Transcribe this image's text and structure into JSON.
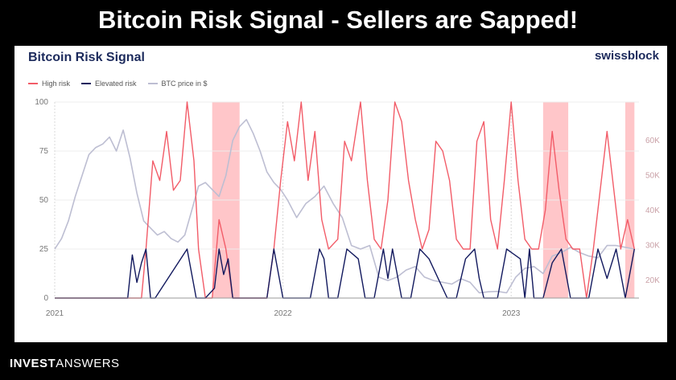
{
  "banner": {
    "title": "Bitcoin Risk Signal - Sellers are Sapped!"
  },
  "card": {
    "title": "Bitcoin Risk Signal",
    "brand": "swissblock"
  },
  "footer": {
    "part1": "INVEST",
    "part2": "ANSWERS"
  },
  "colors": {
    "high_risk": "#f25c68",
    "elevated_risk": "#12195e",
    "btc_price": "#bdbed2",
    "highlight_band": "#ffbcbf",
    "grid": "#ececec",
    "axis_text": "#777777"
  },
  "chart_data": {
    "type": "line",
    "title": "Bitcoin Risk Signal",
    "legend": [
      {
        "name": "High risk",
        "color": "#f25c68"
      },
      {
        "name": "Elevated risk",
        "color": "#12195e"
      },
      {
        "name": "BTC price in $",
        "color": "#bdbed2"
      }
    ],
    "legend_placement": "top-left",
    "x_ticks": [
      {
        "label": "2021",
        "x": 2021.0
      },
      {
        "label": "2022",
        "x": 2022.0
      },
      {
        "label": "2023",
        "x": 2023.0
      }
    ],
    "xlim": [
      2021.0,
      2023.56
    ],
    "y_left": {
      "ticks": [
        0,
        25,
        50,
        75,
        100
      ],
      "ylim": [
        0,
        100
      ]
    },
    "y_right": {
      "ticks": [
        20000,
        30000,
        40000,
        50000,
        60000
      ],
      "tick_labels": [
        "20K",
        "30K",
        "40K",
        "50K",
        "60K"
      ],
      "ylim": [
        15000,
        71000
      ]
    },
    "grid": "horizontal",
    "highlight_bands": [
      {
        "x_start": 2021.69,
        "x_end": 2021.81
      },
      {
        "x_start": 2023.14,
        "x_end": 2023.25
      },
      {
        "x_start": 2023.5,
        "x_end": 2023.54
      }
    ],
    "series": [
      {
        "name": "BTC price in $",
        "axis": "right",
        "x": [
          2021.0,
          2021.03,
          2021.06,
          2021.09,
          2021.12,
          2021.15,
          2021.18,
          2021.21,
          2021.24,
          2021.27,
          2021.3,
          2021.33,
          2021.36,
          2021.39,
          2021.42,
          2021.45,
          2021.48,
          2021.51,
          2021.54,
          2021.57,
          2021.6,
          2021.63,
          2021.66,
          2021.69,
          2021.72,
          2021.75,
          2021.78,
          2021.81,
          2021.84,
          2021.87,
          2021.9,
          2021.93,
          2021.96,
          2021.99,
          2022.02,
          2022.06,
          2022.1,
          2022.14,
          2022.18,
          2022.22,
          2022.26,
          2022.3,
          2022.34,
          2022.38,
          2022.42,
          2022.46,
          2022.5,
          2022.54,
          2022.58,
          2022.62,
          2022.66,
          2022.7,
          2022.74,
          2022.78,
          2022.82,
          2022.86,
          2022.9,
          2022.94,
          2022.98,
          2023.02,
          2023.06,
          2023.1,
          2023.14,
          2023.18,
          2023.22,
          2023.26,
          2023.3,
          2023.34,
          2023.38,
          2023.42,
          2023.46,
          2023.5,
          2023.54
        ],
        "values": [
          29000,
          32000,
          37000,
          44000,
          50000,
          56000,
          58000,
          59000,
          61000,
          57000,
          63000,
          55000,
          45000,
          37000,
          35000,
          33000,
          34000,
          32000,
          31000,
          33000,
          40000,
          47000,
          48000,
          46000,
          44000,
          50000,
          60000,
          64000,
          66000,
          62000,
          57000,
          51000,
          48000,
          46000,
          43000,
          38000,
          42000,
          44000,
          47000,
          42000,
          38000,
          30000,
          29000,
          30000,
          21000,
          20000,
          21000,
          23000,
          24000,
          21000,
          20000,
          19500,
          19000,
          20500,
          19500,
          16500,
          16800,
          16900,
          16500,
          21000,
          23500,
          24000,
          22000,
          27000,
          28000,
          29500,
          28000,
          27000,
          26500,
          30000,
          30000,
          29500,
          29000
        ]
      },
      {
        "name": "High risk",
        "axis": "left",
        "note_color": "#f25c68",
        "x": [
          2021.0,
          2021.38,
          2021.4,
          2021.43,
          2021.46,
          2021.49,
          2021.52,
          2021.55,
          2021.58,
          2021.61,
          2021.63,
          2021.66,
          2021.69,
          2021.72,
          2021.75,
          2021.78,
          2021.81,
          2021.87,
          2021.93,
          2021.96,
          2021.99,
          2022.02,
          2022.05,
          2022.08,
          2022.11,
          2022.14,
          2022.17,
          2022.2,
          2022.24,
          2022.27,
          2022.3,
          2022.34,
          2022.37,
          2022.4,
          2022.43,
          2022.46,
          2022.49,
          2022.52,
          2022.55,
          2022.58,
          2022.61,
          2022.64,
          2022.67,
          2022.7,
          2022.73,
          2022.76,
          2022.79,
          2022.82,
          2022.85,
          2022.88,
          2022.91,
          2022.94,
          2022.97,
          2023.0,
          2023.03,
          2023.06,
          2023.09,
          2023.12,
          2023.15,
          2023.18,
          2023.21,
          2023.24,
          2023.27,
          2023.3,
          2023.33,
          2023.36,
          2023.39,
          2023.42,
          2023.45,
          2023.48,
          2023.51,
          2023.54
        ],
        "values": [
          0,
          0,
          25,
          70,
          60,
          85,
          55,
          60,
          100,
          70,
          25,
          0,
          0,
          40,
          25,
          0,
          0,
          0,
          0,
          25,
          60,
          90,
          70,
          100,
          60,
          85,
          40,
          25,
          30,
          80,
          70,
          100,
          60,
          30,
          25,
          50,
          100,
          90,
          60,
          40,
          25,
          35,
          80,
          75,
          60,
          30,
          25,
          25,
          80,
          90,
          40,
          25,
          60,
          100,
          60,
          30,
          25,
          25,
          45,
          85,
          55,
          30,
          25,
          25,
          0,
          25,
          55,
          85,
          55,
          25,
          40,
          25
        ]
      },
      {
        "name": "Elevated risk",
        "axis": "left",
        "x": [
          2021.0,
          2021.32,
          2021.34,
          2021.36,
          2021.38,
          2021.4,
          2021.42,
          2021.44,
          2021.58,
          2021.62,
          2021.66,
          2021.7,
          2021.72,
          2021.74,
          2021.76,
          2021.78,
          2021.93,
          2021.96,
          2022.0,
          2022.04,
          2022.12,
          2022.16,
          2022.18,
          2022.2,
          2022.24,
          2022.28,
          2022.33,
          2022.36,
          2022.4,
          2022.44,
          2022.46,
          2022.48,
          2022.52,
          2022.56,
          2022.6,
          2022.64,
          2022.72,
          2022.76,
          2022.8,
          2022.84,
          2022.86,
          2022.88,
          2022.94,
          2022.98,
          2023.04,
          2023.06,
          2023.08,
          2023.1,
          2023.14,
          2023.18,
          2023.22,
          2023.26,
          2023.3,
          2023.34,
          2023.38,
          2023.42,
          2023.46,
          2023.5,
          2023.54
        ],
        "values": [
          0,
          0,
          22,
          8,
          18,
          25,
          0,
          0,
          25,
          0,
          0,
          5,
          25,
          12,
          20,
          0,
          0,
          25,
          0,
          0,
          0,
          25,
          20,
          0,
          0,
          25,
          20,
          0,
          0,
          25,
          10,
          25,
          0,
          0,
          25,
          20,
          0,
          0,
          20,
          25,
          10,
          0,
          0,
          25,
          20,
          0,
          25,
          0,
          0,
          18,
          25,
          0,
          0,
          0,
          25,
          10,
          25,
          0,
          25
        ]
      }
    ]
  }
}
